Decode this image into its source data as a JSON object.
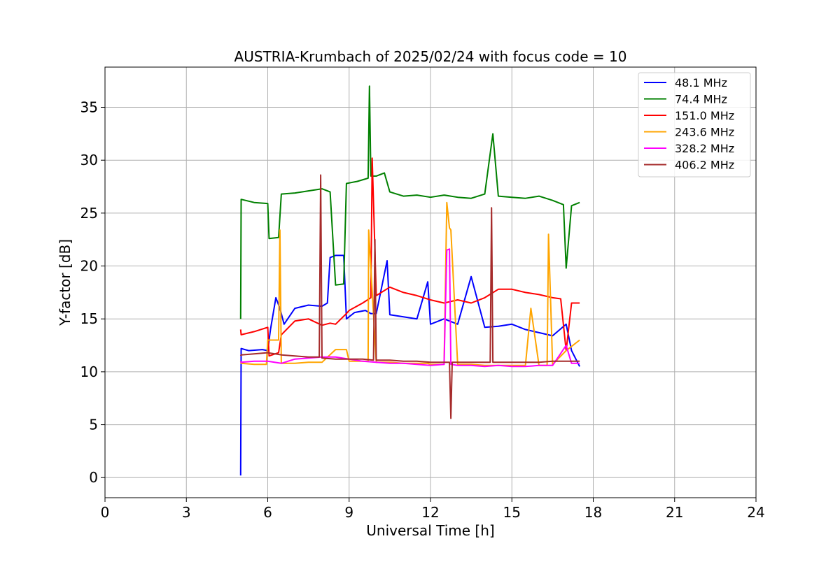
{
  "chart_data": {
    "type": "line",
    "title": "AUSTRIA-Krumbach of 2025/02/24 with focus code = 10",
    "xlabel": "Universal Time [h]",
    "ylabel": "Y-factor [dB]",
    "xlim": [
      0,
      24
    ],
    "ylim": [
      -1.9,
      38.8
    ],
    "x_ticks": [
      0,
      3,
      6,
      9,
      12,
      15,
      18,
      21,
      24
    ],
    "x_tick_labels": [
      "0",
      "3",
      "6",
      "9",
      "12",
      "15",
      "18",
      "21",
      "24"
    ],
    "y_ticks": [
      0,
      5,
      10,
      15,
      20,
      25,
      30,
      35
    ],
    "y_tick_labels": [
      "0",
      "5",
      "10",
      "15",
      "20",
      "25",
      "30",
      "35"
    ],
    "grid": true,
    "legend_position": "top-right",
    "series": [
      {
        "name": " 48.1 MHz",
        "color": "#0000ff",
        "x": [
          5.0,
          5.02,
          5.3,
          5.8,
          6.0,
          6.1,
          6.3,
          6.45,
          6.6,
          7.0,
          7.5,
          8.0,
          8.2,
          8.3,
          8.5,
          8.8,
          8.9,
          9.2,
          9.6,
          9.8,
          10.0,
          10.4,
          10.5,
          11.0,
          11.5,
          11.9,
          12.0,
          12.5,
          13.0,
          13.5,
          14.0,
          14.5,
          15.0,
          15.5,
          16.0,
          16.5,
          17.0,
          17.2,
          17.5
        ],
        "y": [
          0.2,
          12.2,
          12.0,
          12.1,
          12.0,
          14.0,
          17.0,
          16.0,
          14.5,
          16.0,
          16.3,
          16.2,
          16.5,
          20.8,
          21.0,
          21.0,
          15.0,
          15.6,
          15.8,
          15.5,
          15.5,
          20.5,
          15.4,
          15.2,
          15.0,
          18.5,
          14.5,
          15.0,
          14.5,
          19.0,
          14.2,
          14.3,
          14.5,
          14.0,
          13.7,
          13.4,
          14.5,
          12.0,
          10.5
        ]
      },
      {
        "name": " 74.4 MHz",
        "color": "#008000",
        "x": [
          5.0,
          5.02,
          5.5,
          6.0,
          6.05,
          6.4,
          6.5,
          7.0,
          7.5,
          8.0,
          8.3,
          8.5,
          8.8,
          8.9,
          9.3,
          9.7,
          9.75,
          9.8,
          10.0,
          10.3,
          10.5,
          11.0,
          11.5,
          12.0,
          12.5,
          13.0,
          13.5,
          14.0,
          14.3,
          14.5,
          15.0,
          15.5,
          16.0,
          16.5,
          16.9,
          17.0,
          17.2,
          17.5
        ],
        "y": [
          15.0,
          26.3,
          26.0,
          25.9,
          22.6,
          22.7,
          26.8,
          26.9,
          27.1,
          27.3,
          27.0,
          18.2,
          18.3,
          27.8,
          28.0,
          28.3,
          37.0,
          28.5,
          28.5,
          28.8,
          27.0,
          26.6,
          26.7,
          26.5,
          26.7,
          26.5,
          26.4,
          26.8,
          32.5,
          26.6,
          26.5,
          26.4,
          26.6,
          26.2,
          25.8,
          19.8,
          25.7,
          26.0
        ]
      },
      {
        "name": " 151.0 MHz",
        "color": "#ff0000",
        "x": [
          5.0,
          5.02,
          5.5,
          6.0,
          6.05,
          6.4,
          6.5,
          7.0,
          7.5,
          8.0,
          8.3,
          8.5,
          8.9,
          9.0,
          9.5,
          9.8,
          9.85,
          10.0,
          10.5,
          11.0,
          11.5,
          12.0,
          12.5,
          13.0,
          13.5,
          14.0,
          14.5,
          15.0,
          15.5,
          16.0,
          16.5,
          16.8,
          17.0,
          17.2,
          17.5
        ],
        "y": [
          14.0,
          13.5,
          13.8,
          14.2,
          11.5,
          11.8,
          13.5,
          14.8,
          15.0,
          14.4,
          14.6,
          14.5,
          15.5,
          15.8,
          16.5,
          17.0,
          30.2,
          17.2,
          18.0,
          17.5,
          17.2,
          16.8,
          16.5,
          16.8,
          16.5,
          17.0,
          17.8,
          17.8,
          17.5,
          17.3,
          17.0,
          16.9,
          12.0,
          16.5,
          16.5
        ]
      },
      {
        "name": " 243.6 MHz",
        "color": "#ffa500",
        "x": [
          5.0,
          5.02,
          5.5,
          5.95,
          6.0,
          6.4,
          6.45,
          6.5,
          7.0,
          7.5,
          8.0,
          8.5,
          8.9,
          9.0,
          9.7,
          9.72,
          10.0,
          10.5,
          11.0,
          11.5,
          11.9,
          12.0,
          12.5,
          12.6,
          12.7,
          12.75,
          13.0,
          13.5,
          14.0,
          14.5,
          15.0,
          15.5,
          15.7,
          16.0,
          16.3,
          16.35,
          16.5,
          17.0,
          17.5
        ],
        "y": [
          11.0,
          10.8,
          10.7,
          10.7,
          13.0,
          13.0,
          23.4,
          10.8,
          10.8,
          10.9,
          10.9,
          12.1,
          12.1,
          11.0,
          11.0,
          23.4,
          10.9,
          10.9,
          10.8,
          10.8,
          10.8,
          10.7,
          10.7,
          26.0,
          23.6,
          23.4,
          10.7,
          10.7,
          10.6,
          10.6,
          10.6,
          10.6,
          16.0,
          10.6,
          10.6,
          23.0,
          10.7,
          12.0,
          13.0
        ]
      },
      {
        "name": " 328.2 MHz",
        "color": "#ff00ff",
        "x": [
          5.0,
          5.02,
          5.5,
          6.0,
          6.5,
          7.0,
          7.5,
          8.0,
          8.5,
          9.0,
          9.5,
          10.0,
          10.5,
          11.0,
          11.5,
          12.0,
          12.5,
          12.6,
          12.7,
          12.75,
          13.0,
          13.5,
          14.0,
          14.5,
          15.0,
          15.5,
          16.0,
          16.5,
          17.0,
          17.2,
          17.5
        ],
        "y": [
          11.0,
          10.9,
          11.0,
          11.0,
          10.8,
          11.2,
          11.3,
          11.4,
          11.4,
          11.2,
          11.0,
          10.9,
          10.8,
          10.8,
          10.7,
          10.6,
          10.7,
          21.5,
          21.6,
          10.7,
          10.6,
          10.6,
          10.5,
          10.6,
          10.5,
          10.5,
          10.6,
          10.6,
          12.5,
          10.8,
          10.8
        ]
      },
      {
        "name": " 406.2 MHz",
        "color": "#a52a2a",
        "x": [
          5.0,
          5.02,
          5.5,
          6.0,
          6.5,
          7.0,
          7.5,
          7.9,
          7.95,
          8.0,
          8.5,
          9.0,
          9.5,
          9.9,
          9.95,
          10.0,
          10.5,
          11.0,
          11.5,
          12.0,
          12.5,
          12.7,
          12.75,
          12.8,
          13.0,
          13.5,
          14.0,
          14.2,
          14.25,
          14.3,
          15.0,
          15.5,
          16.0,
          16.5,
          17.0,
          17.5
        ],
        "y": [
          11.5,
          11.6,
          11.7,
          11.8,
          11.6,
          11.5,
          11.4,
          11.4,
          28.6,
          11.3,
          11.2,
          11.2,
          11.2,
          11.1,
          22.5,
          11.1,
          11.1,
          11.0,
          11.0,
          10.9,
          10.9,
          10.9,
          5.6,
          10.9,
          10.9,
          10.9,
          10.9,
          10.9,
          25.5,
          10.9,
          10.9,
          10.9,
          10.9,
          11.0,
          11.0,
          11.0
        ]
      }
    ]
  }
}
